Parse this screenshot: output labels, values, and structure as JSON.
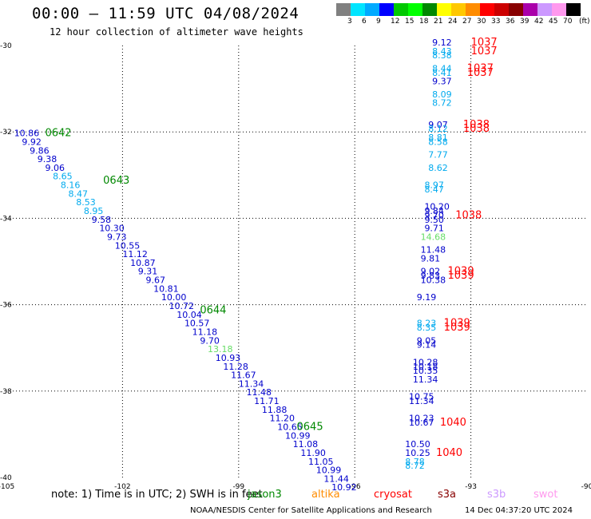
{
  "header": {
    "title": "00:00 — 11:59 UTC 04/08/2024",
    "subtitle": "12 hour collection of altimeter wave heights"
  },
  "color_scale": {
    "labels": [
      "3",
      "6",
      "9",
      "12",
      "15",
      "18",
      "21",
      "24",
      "27",
      "30",
      "33",
      "36",
      "39",
      "42",
      "45",
      "70"
    ],
    "unit": "(ft)",
    "colors": [
      "#808080",
      "#00e5ff",
      "#00aaff",
      "#0000ff",
      "#00c800",
      "#00ff00",
      "#008800",
      "#ffff00",
      "#ffc800",
      "#ff8c00",
      "#ff0000",
      "#cc0000",
      "#880000",
      "#aa00aa",
      "#cc99ff",
      "#ff99ee",
      "#000000"
    ]
  },
  "footer": {
    "note": "note: 1) Time is in UTC; 2) SWH is in feet",
    "satellites": [
      {
        "name": "jason3",
        "color": "#008800"
      },
      {
        "name": "altika",
        "color": "#ff8c00"
      },
      {
        "name": "cryosat",
        "color": "#ff0000"
      },
      {
        "name": "s3a",
        "color": "#880000"
      },
      {
        "name": "s3b",
        "color": "#cc99ff"
      },
      {
        "name": "swot",
        "color": "#ff99ee"
      }
    ],
    "credit": "NOAA/NESDIS Center for Satellite Applications and Research",
    "timestamp": "14 Dec 04:37:20 UTC 2024"
  },
  "chart_data": {
    "type": "scatter",
    "x_axis": {
      "min": -105,
      "max": -90,
      "ticks": [
        -105,
        -102,
        -99,
        -96,
        -93,
        -90
      ],
      "tick_labels": [
        "-105",
        "-102",
        "-99",
        "-96",
        "-93",
        "-90"
      ]
    },
    "y_axis": {
      "min": -40,
      "max": -30,
      "ticks": [
        -30,
        -32,
        -34,
        -36,
        -38,
        -40
      ],
      "tick_labels": [
        "-30",
        "-32",
        "-34",
        "-36",
        "-38",
        "-40"
      ]
    },
    "grid": "dotted",
    "legend": "bottom",
    "labels": [
      {
        "text": "10.86",
        "lon": -104.8,
        "lat": -32.1,
        "color": "#0000cc"
      },
      {
        "text": "9.92",
        "lon": -104.6,
        "lat": -32.3,
        "color": "#0000cc"
      },
      {
        "text": "9.86",
        "lon": -104.4,
        "lat": -32.5,
        "color": "#0000cc"
      },
      {
        "text": "9.38",
        "lon": -104.2,
        "lat": -32.7,
        "color": "#0000cc"
      },
      {
        "text": "9.06",
        "lon": -104.0,
        "lat": -32.9,
        "color": "#0000cc"
      },
      {
        "text": "8.65",
        "lon": -103.8,
        "lat": -33.1,
        "color": "#00aaee"
      },
      {
        "text": "8.16",
        "lon": -103.6,
        "lat": -33.3,
        "color": "#00aaee"
      },
      {
        "text": "8.47",
        "lon": -103.4,
        "lat": -33.5,
        "color": "#00aaee"
      },
      {
        "text": "8.53",
        "lon": -103.2,
        "lat": -33.7,
        "color": "#00aaee"
      },
      {
        "text": "8.95",
        "lon": -103.0,
        "lat": -33.9,
        "color": "#00aaee"
      },
      {
        "text": "9.58",
        "lon": -102.8,
        "lat": -34.1,
        "color": "#0000cc"
      },
      {
        "text": "10.30",
        "lon": -102.6,
        "lat": -34.3,
        "color": "#0000cc"
      },
      {
        "text": "9.73",
        "lon": -102.4,
        "lat": -34.5,
        "color": "#0000cc"
      },
      {
        "text": "10.55",
        "lon": -102.2,
        "lat": -34.7,
        "color": "#0000cc"
      },
      {
        "text": "11.12",
        "lon": -102.0,
        "lat": -34.9,
        "color": "#0000cc"
      },
      {
        "text": "10.87",
        "lon": -101.8,
        "lat": -35.1,
        "color": "#0000cc"
      },
      {
        "text": "9.31",
        "lon": -101.6,
        "lat": -35.3,
        "color": "#0000cc"
      },
      {
        "text": "9.67",
        "lon": -101.4,
        "lat": -35.5,
        "color": "#0000cc"
      },
      {
        "text": "10.81",
        "lon": -101.2,
        "lat": -35.7,
        "color": "#0000cc"
      },
      {
        "text": "10.00",
        "lon": -101.0,
        "lat": -35.9,
        "color": "#0000cc"
      },
      {
        "text": "10.72",
        "lon": -100.8,
        "lat": -36.1,
        "color": "#0000cc"
      },
      {
        "text": "10.04",
        "lon": -100.6,
        "lat": -36.3,
        "color": "#0000cc"
      },
      {
        "text": "10.57",
        "lon": -100.4,
        "lat": -36.5,
        "color": "#0000cc"
      },
      {
        "text": "11.18",
        "lon": -100.2,
        "lat": -36.7,
        "color": "#0000cc"
      },
      {
        "text": "9.70",
        "lon": -100.0,
        "lat": -36.9,
        "color": "#0000cc"
      },
      {
        "text": "13.18",
        "lon": -99.8,
        "lat": -37.1,
        "color": "#66dd66"
      },
      {
        "text": "10.93",
        "lon": -99.6,
        "lat": -37.3,
        "color": "#0000cc"
      },
      {
        "text": "11.28",
        "lon": -99.4,
        "lat": -37.5,
        "color": "#0000cc"
      },
      {
        "text": "11.67",
        "lon": -99.2,
        "lat": -37.7,
        "color": "#0000cc"
      },
      {
        "text": "11.34",
        "lon": -99.0,
        "lat": -37.9,
        "color": "#0000cc"
      },
      {
        "text": "11.48",
        "lon": -98.8,
        "lat": -38.1,
        "color": "#0000cc"
      },
      {
        "text": "11.71",
        "lon": -98.6,
        "lat": -38.3,
        "color": "#0000cc"
      },
      {
        "text": "11.88",
        "lon": -98.4,
        "lat": -38.5,
        "color": "#0000cc"
      },
      {
        "text": "11.20",
        "lon": -98.2,
        "lat": -38.7,
        "color": "#0000cc"
      },
      {
        "text": "10.65",
        "lon": -98.0,
        "lat": -38.9,
        "color": "#0000cc"
      },
      {
        "text": "10.99",
        "lon": -97.8,
        "lat": -39.1,
        "color": "#0000cc"
      },
      {
        "text": "11.08",
        "lon": -97.6,
        "lat": -39.3,
        "color": "#0000cc"
      },
      {
        "text": "11.90",
        "lon": -97.4,
        "lat": -39.5,
        "color": "#0000cc"
      },
      {
        "text": "11.05",
        "lon": -97.2,
        "lat": -39.7,
        "color": "#0000cc"
      },
      {
        "text": "10.99",
        "lon": -97.0,
        "lat": -39.9,
        "color": "#0000cc"
      },
      {
        "text": "11.44",
        "lon": -96.8,
        "lat": -40.1,
        "color": "#0000cc"
      },
      {
        "text": "10.92",
        "lon": -96.6,
        "lat": -40.3,
        "color": "#0000cc"
      },
      {
        "text": "0642",
        "lon": -104.0,
        "lat": -32.1,
        "color": "#008800",
        "kind": "time"
      },
      {
        "text": "0643",
        "lon": -102.5,
        "lat": -33.2,
        "color": "#008800",
        "kind": "time"
      },
      {
        "text": "0644",
        "lon": -100.0,
        "lat": -36.2,
        "color": "#008800",
        "kind": "time"
      },
      {
        "text": "0645",
        "lon": -97.5,
        "lat": -38.9,
        "color": "#008800",
        "kind": "time"
      },
      {
        "text": "9.12",
        "lon": -94.0,
        "lat": -30.0,
        "color": "#0000cc"
      },
      {
        "text": "8.43",
        "lon": -94.0,
        "lat": -30.2,
        "color": "#00aaee"
      },
      {
        "text": "8.38",
        "lon": -94.0,
        "lat": -30.3,
        "color": "#00aaee"
      },
      {
        "text": "8.44",
        "lon": -94.0,
        "lat": -30.6,
        "color": "#00aaee"
      },
      {
        "text": "8.41",
        "lon": -94.0,
        "lat": -30.7,
        "color": "#00aaee"
      },
      {
        "text": "9.37",
        "lon": -94.0,
        "lat": -30.9,
        "color": "#0000cc"
      },
      {
        "text": "8.09",
        "lon": -94.0,
        "lat": -31.2,
        "color": "#00aaee"
      },
      {
        "text": "8.72",
        "lon": -94.0,
        "lat": -31.4,
        "color": "#00aaee"
      },
      {
        "text": "9.07",
        "lon": -94.1,
        "lat": -31.9,
        "color": "#0000cc"
      },
      {
        "text": "8.12",
        "lon": -94.1,
        "lat": -32.0,
        "color": "#00aaee"
      },
      {
        "text": "8.81",
        "lon": -94.1,
        "lat": -32.2,
        "color": "#00aaee"
      },
      {
        "text": "8.58",
        "lon": -94.1,
        "lat": -32.3,
        "color": "#00aaee"
      },
      {
        "text": "7.77",
        "lon": -94.1,
        "lat": -32.6,
        "color": "#00aaee"
      },
      {
        "text": "8.62",
        "lon": -94.1,
        "lat": -32.9,
        "color": "#00aaee"
      },
      {
        "text": "8.97",
        "lon": -94.2,
        "lat": -33.3,
        "color": "#00aaee"
      },
      {
        "text": "8.47",
        "lon": -94.2,
        "lat": -33.4,
        "color": "#00aaee"
      },
      {
        "text": "10.20",
        "lon": -94.2,
        "lat": -33.8,
        "color": "#0000cc"
      },
      {
        "text": "9.84",
        "lon": -94.2,
        "lat": -33.9,
        "color": "#0000cc"
      },
      {
        "text": "9.70",
        "lon": -94.2,
        "lat": -34.0,
        "color": "#0000cc"
      },
      {
        "text": "9.50",
        "lon": -94.2,
        "lat": -34.1,
        "color": "#0000cc"
      },
      {
        "text": "9.71",
        "lon": -94.2,
        "lat": -34.3,
        "color": "#0000cc"
      },
      {
        "text": "14.68",
        "lon": -94.3,
        "lat": -34.5,
        "color": "#66dd66"
      },
      {
        "text": "11.48",
        "lon": -94.3,
        "lat": -34.8,
        "color": "#0000cc"
      },
      {
        "text": "9.81",
        "lon": -94.3,
        "lat": -35.0,
        "color": "#0000cc"
      },
      {
        "text": "9.02",
        "lon": -94.3,
        "lat": -35.3,
        "color": "#0000cc"
      },
      {
        "text": "9.83",
        "lon": -94.3,
        "lat": -35.4,
        "color": "#0000cc"
      },
      {
        "text": "10.38",
        "lon": -94.3,
        "lat": -35.5,
        "color": "#0000cc"
      },
      {
        "text": "9.19",
        "lon": -94.4,
        "lat": -35.9,
        "color": "#0000cc"
      },
      {
        "text": "8.23",
        "lon": -94.4,
        "lat": -36.5,
        "color": "#00aaee"
      },
      {
        "text": "8.35",
        "lon": -94.4,
        "lat": -36.6,
        "color": "#00aaee"
      },
      {
        "text": "9.05",
        "lon": -94.4,
        "lat": -36.9,
        "color": "#0000cc"
      },
      {
        "text": "9.14",
        "lon": -94.4,
        "lat": -37.0,
        "color": "#0000cc"
      },
      {
        "text": "10.28",
        "lon": -94.5,
        "lat": -37.4,
        "color": "#0000cc"
      },
      {
        "text": "10.18",
        "lon": -94.5,
        "lat": -37.5,
        "color": "#0000cc"
      },
      {
        "text": "10.35",
        "lon": -94.5,
        "lat": -37.6,
        "color": "#0000cc"
      },
      {
        "text": "11.34",
        "lon": -94.5,
        "lat": -37.8,
        "color": "#0000cc"
      },
      {
        "text": "10.75",
        "lon": -94.6,
        "lat": -38.2,
        "color": "#0000cc"
      },
      {
        "text": "11.34",
        "lon": -94.6,
        "lat": -38.3,
        "color": "#0000cc"
      },
      {
        "text": "10.23",
        "lon": -94.6,
        "lat": -38.7,
        "color": "#0000cc"
      },
      {
        "text": "10.67",
        "lon": -94.6,
        "lat": -38.8,
        "color": "#0000cc"
      },
      {
        "text": "10.50",
        "lon": -94.7,
        "lat": -39.3,
        "color": "#0000cc"
      },
      {
        "text": "10.25",
        "lon": -94.7,
        "lat": -39.5,
        "color": "#0000cc"
      },
      {
        "text": "8.78",
        "lon": -94.7,
        "lat": -39.7,
        "color": "#00aaee"
      },
      {
        "text": "8.72",
        "lon": -94.7,
        "lat": -39.8,
        "color": "#00aaee"
      },
      {
        "text": "1037",
        "lon": -93.0,
        "lat": -30.0,
        "color": "#ff0000",
        "kind": "time"
      },
      {
        "text": "1037",
        "lon": -93.0,
        "lat": -30.2,
        "color": "#ff0000",
        "kind": "time"
      },
      {
        "text": "1037",
        "lon": -93.1,
        "lat": -30.6,
        "color": "#ff0000",
        "kind": "time"
      },
      {
        "text": "1037",
        "lon": -93.1,
        "lat": -30.7,
        "color": "#ff0000",
        "kind": "time"
      },
      {
        "text": "1038",
        "lon": -93.2,
        "lat": -31.9,
        "color": "#ff0000",
        "kind": "time"
      },
      {
        "text": "1038",
        "lon": -93.2,
        "lat": -32.0,
        "color": "#ff0000",
        "kind": "time"
      },
      {
        "text": "1038",
        "lon": -93.4,
        "lat": -34.0,
        "color": "#ff0000",
        "kind": "time"
      },
      {
        "text": "1039",
        "lon": -93.6,
        "lat": -35.3,
        "color": "#ff0000",
        "kind": "time"
      },
      {
        "text": "1039",
        "lon": -93.6,
        "lat": -35.4,
        "color": "#ff0000",
        "kind": "time"
      },
      {
        "text": "1039",
        "lon": -93.7,
        "lat": -36.5,
        "color": "#ff0000",
        "kind": "time"
      },
      {
        "text": "1039",
        "lon": -93.7,
        "lat": -36.6,
        "color": "#ff0000",
        "kind": "time"
      },
      {
        "text": "1040",
        "lon": -93.8,
        "lat": -38.8,
        "color": "#ff0000",
        "kind": "time"
      },
      {
        "text": "1040",
        "lon": -93.9,
        "lat": -39.5,
        "color": "#ff0000",
        "kind": "time"
      }
    ]
  }
}
